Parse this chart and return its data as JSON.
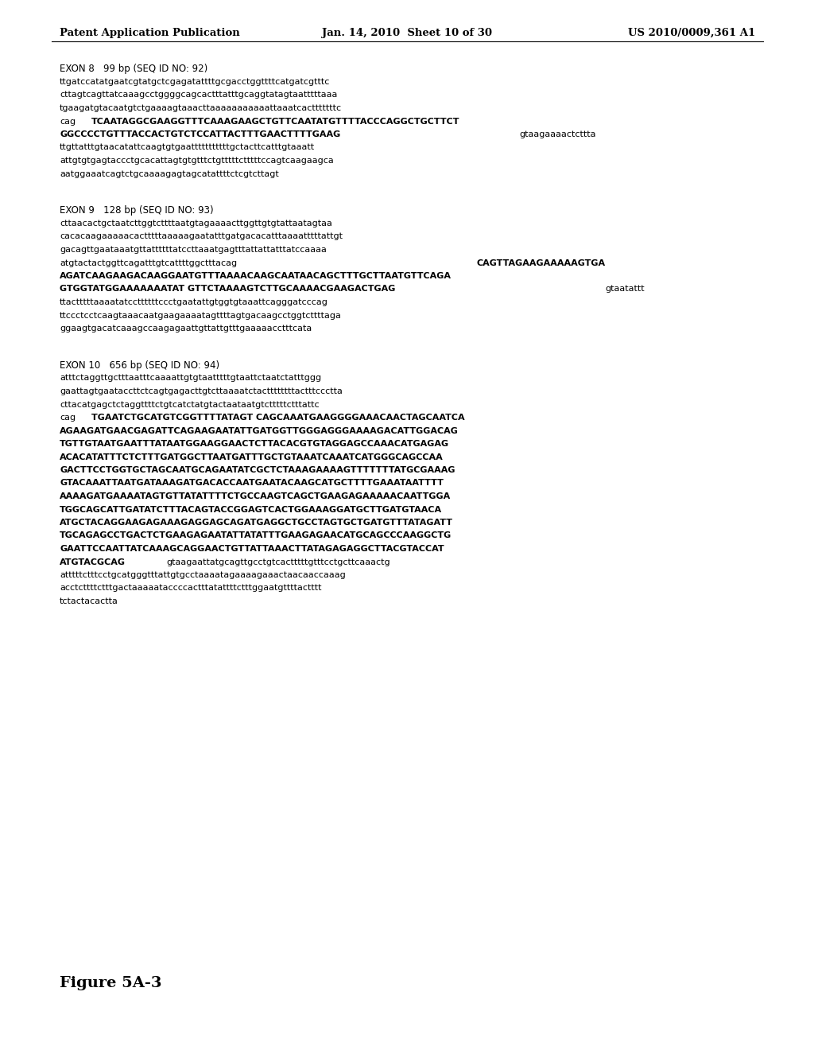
{
  "background_color": "#ffffff",
  "header_left": "Patent Application Publication",
  "header_center": "Jan. 14, 2010  Sheet 10 of 30",
  "header_right": "US 2010/0009,361 A1",
  "figure_label": "Figure 5A-3",
  "sections": [
    {
      "title": "EXON 8   99 bp (SEQ ID NO: 92)",
      "lines": [
        {
          "segments": [
            {
              "text": "ttgatccatatgaatcgtatgctcgagatattttgcgacctggttttcatgatcgtttc",
              "bold": false
            }
          ]
        },
        {
          "segments": [
            {
              "text": "cttagtcagttatcaaagcctggggcagcactttatttgcaggtatagtaatttttaaa",
              "bold": false
            }
          ]
        },
        {
          "segments": [
            {
              "text": "tgaagatgtacaatgtctgaaaagtaaacttaaaaaaaaaaattaaatcactttttttc",
              "bold": false
            }
          ]
        },
        {
          "segments": [
            {
              "text": "cag",
              "bold": false
            },
            {
              "text": "TCAATAGGCGAAGGTTTCAAAGAAGCTGTTCAATATGTTTTACCCAGGCTGCTTCT",
              "bold": true
            }
          ]
        },
        {
          "segments": [
            {
              "text": "GGCCCCTGTTTACCACTGTCTCCATTACTTTGAACTTTTGAAG",
              "bold": true
            },
            {
              "text": "gtaagaaaactcttta",
              "bold": false
            }
          ]
        },
        {
          "segments": [
            {
              "text": "ttgttatttgtaacatattcaagtgtgaatttttttttttgctacttcatttgtaaatt",
              "bold": false
            }
          ]
        },
        {
          "segments": [
            {
              "text": "attgtgtgagtaccctgcacattagtgtgtttctgtttttctttttccagtcaagaagca",
              "bold": false
            }
          ]
        },
        {
          "segments": [
            {
              "text": "aatggaaatcagtctgcaaaagagtagcatattttctcgtcttagt",
              "bold": false
            }
          ]
        }
      ]
    },
    {
      "title": "EXON 9   128 bp (SEQ ID NO: 93)",
      "lines": [
        {
          "segments": [
            {
              "text": "cttaacactgctaatcttggtcttttaatgtagaaaacttggttgtgtattaatagtaa",
              "bold": false
            }
          ]
        },
        {
          "segments": [
            {
              "text": "cacacaagaaaaacactttttaaaaagaatatttgatgacacatttaaaatttttattgt",
              "bold": false
            }
          ]
        },
        {
          "segments": [
            {
              "text": "gacagttgaataaatgttattttttatccttaaatgagtttattattatttatccaaaa",
              "bold": false
            }
          ]
        },
        {
          "segments": [
            {
              "text": "atgtactactggttcagatttgtcattttggctttacag",
              "bold": false
            },
            {
              "text": "CAGTTAGAAGAAAAAGTGA",
              "bold": true
            }
          ]
        },
        {
          "segments": [
            {
              "text": "AGATCAAGAAGACAAGGAATGTTTAAAACAAGCAATAACAGCTTTGCTTAATGTTCAGA",
              "bold": true
            }
          ]
        },
        {
          "segments": [
            {
              "text": "GTGGTATGGAAAAAAATAT GTTCTAAAAGTCTTGCAAAACGAAGACTGAG",
              "bold": true
            },
            {
              "text": "gtaatattt",
              "bold": false
            }
          ]
        },
        {
          "segments": [
            {
              "text": "ttactttttaaaatatccttttttccctgaatattgtggtgtaaattcagggatcccag",
              "bold": false
            }
          ]
        },
        {
          "segments": [
            {
              "text": "ttccctcctcaagtaaacaatgaagaaaatagttttagtgacaagcctggtcttttaga",
              "bold": false
            }
          ]
        },
        {
          "segments": [
            {
              "text": "ggaagtgacatcaaagccaagagaattgttattgtttgaaaaacctttcata",
              "bold": false
            }
          ]
        }
      ]
    },
    {
      "title": "EXON 10   656 bp (SEQ ID NO: 94)",
      "lines": [
        {
          "segments": [
            {
              "text": "atttctaggttgctttaatttcaaaattgtgtaatttttgtaattctaatctatttggg",
              "bold": false
            }
          ]
        },
        {
          "segments": [
            {
              "text": "gaattagtgaataccttctcagtgagacttgtcttaaaatctacttttttttactttccctta",
              "bold": false
            }
          ]
        },
        {
          "segments": [
            {
              "text": "cttacatgagctctaggttttctgtcatctatgtactaataatgtctttttctttattc",
              "bold": false
            }
          ]
        },
        {
          "segments": [
            {
              "text": "cag",
              "bold": false
            },
            {
              "text": "TGAATCTGCATGTCGGTTTTATAGT CAGCAAATGAAGGGGAAACAACTAGCAATCA",
              "bold": true
            }
          ]
        },
        {
          "segments": [
            {
              "text": "AGAAGATGAACGAGATTCAGAAGAATATTGATGGTTGGGAGGGAAAAGACATTGGACAG",
              "bold": true
            }
          ]
        },
        {
          "segments": [
            {
              "text": "TGTTGTAATGAATTTATAATGGAAGGAACTCTTACACGTGTAGGAGCCAAACATGAGAG",
              "bold": true
            }
          ]
        },
        {
          "segments": [
            {
              "text": "ACACATATTTCTCTTTGATGGCTTAATGATTTGCTGTAAATCAAATCATGGGCAGCCAA",
              "bold": true
            }
          ]
        },
        {
          "segments": [
            {
              "text": "GACTTCCTGGTGCTAGCAATGCAGAATATCGCTCTAAAGAAAAGTTTTTTTATGCGAAAG",
              "bold": true
            }
          ]
        },
        {
          "segments": [
            {
              "text": "GTACAAATTAATGATAAAGATGACACCAATGAATACAAGCATGCTTTTGAAATAATTTT",
              "bold": true
            }
          ]
        },
        {
          "segments": [
            {
              "text": "AAAAGATGAAAATAGTGTTATATTTTCTGCCAAGTCAGCTGAAGAGAAAAACAATTGGA",
              "bold": true
            }
          ]
        },
        {
          "segments": [
            {
              "text": "TGGCAGCATTGATATCTTTACAGTACCGGAGTCACTGGAAAGGATGCTTGATGTAACA",
              "bold": true
            }
          ]
        },
        {
          "segments": [
            {
              "text": "ATGCTACAGGAAGAGAAAGAGGAGCAGATGAGGCTGCCTAGTGCTGATGTTTATAGATT",
              "bold": true
            }
          ]
        },
        {
          "segments": [
            {
              "text": "TGCAGAGCCTGACTCTGAAGAGAATATTATATTTGAAGAGAACATGCAGCCCAAGGCTG",
              "bold": true
            }
          ]
        },
        {
          "segments": [
            {
              "text": "GAATTCCAATTATCAAAGCAGGAACTGTTATTAAACTTATAGAGAGGCTTACGTACCAT",
              "bold": true
            }
          ]
        },
        {
          "segments": [
            {
              "text": "ATGTACGCAG",
              "bold": true
            },
            {
              "text": "gtaagaattatgcagttgcctgtcactttttgtttcctgcttcaaactg",
              "bold": false
            }
          ]
        },
        {
          "segments": [
            {
              "text": "atttttctttcctgcatgggtttattgtgcctaaaatagaaaagaaactaacaaccaaag",
              "bold": false
            }
          ]
        },
        {
          "segments": [
            {
              "text": "acctcttttctttgactaaaaataccccactttatattttctttggaatgttttactttt",
              "bold": false
            }
          ]
        },
        {
          "segments": [
            {
              "text": "tctactacactta",
              "bold": false
            }
          ]
        }
      ]
    }
  ]
}
